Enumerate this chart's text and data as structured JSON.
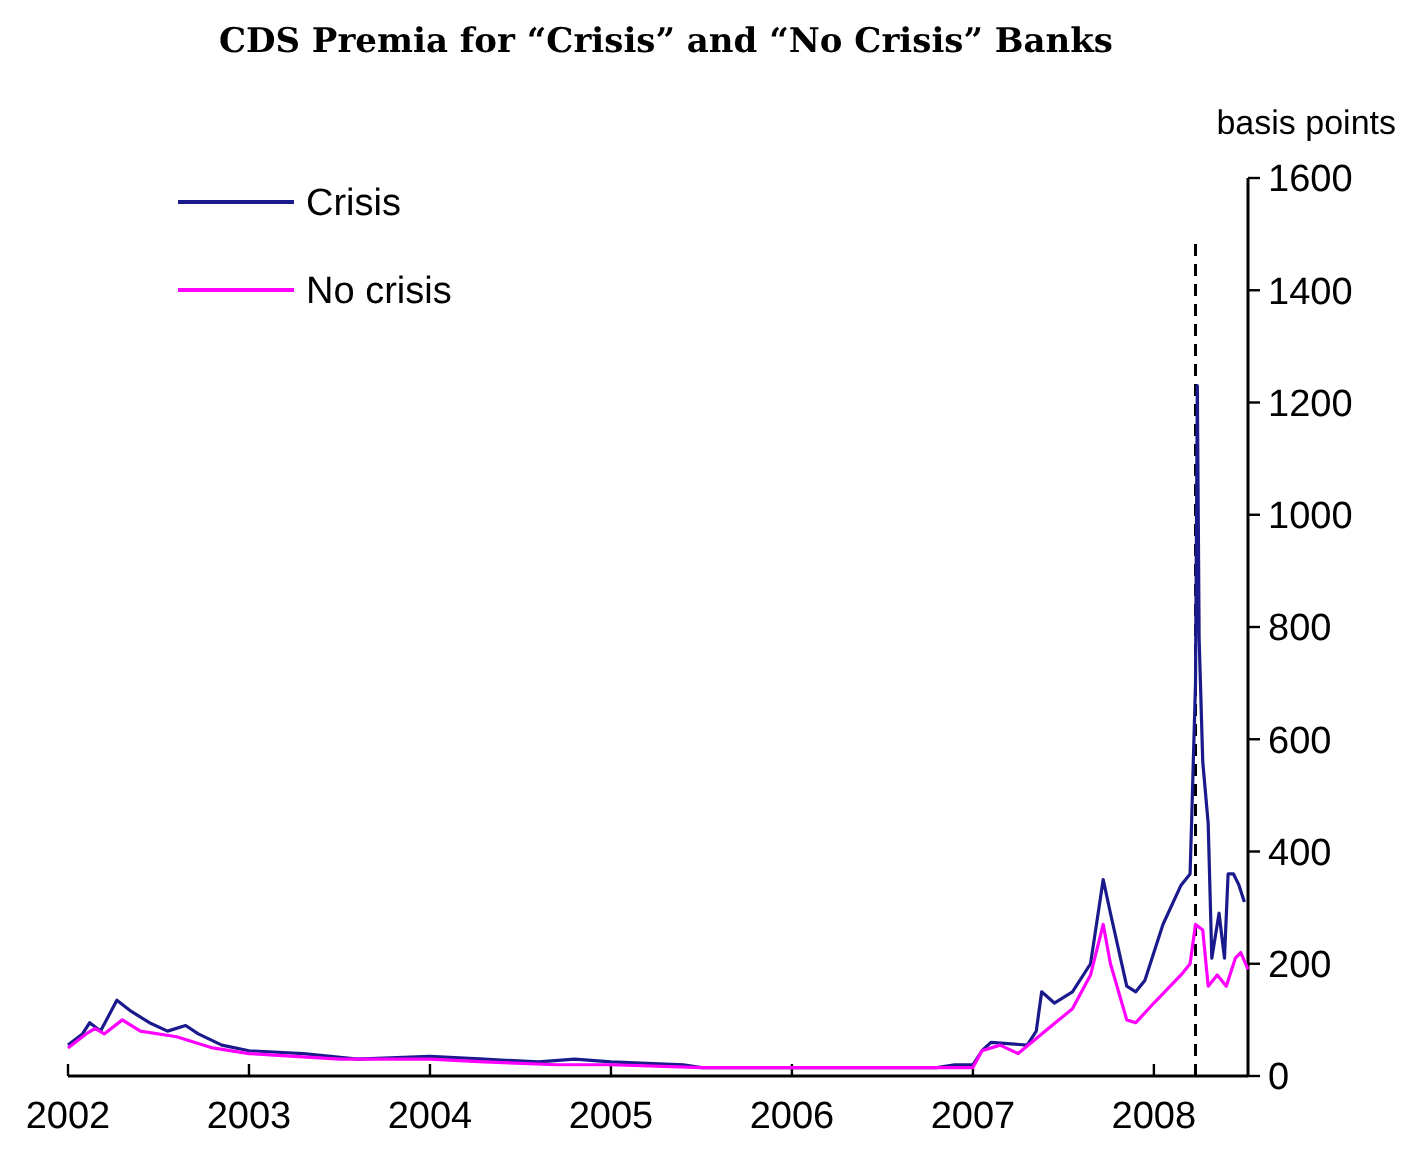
{
  "chart_data": {
    "type": "line",
    "title": "CDS Premia for “Crisis” and “No Crisis” Banks",
    "ylabel": "basis points",
    "xlim": [
      2002,
      2008.52
    ],
    "xticks": [
      2002,
      2003,
      2004,
      2005,
      2006,
      2007,
      2008
    ],
    "ylim": [
      0,
      1600
    ],
    "yticks": [
      0,
      200,
      400,
      600,
      800,
      1000,
      1200,
      1400,
      1600
    ],
    "legend": "top left",
    "grid": false,
    "ref_lines": [
      {
        "axis": "x",
        "value": 2008.23,
        "line_style": "dashed",
        "color": "#000000"
      }
    ],
    "series": [
      {
        "name": "Crisis",
        "color": "#1a1a8c",
        "x": [
          2002.0,
          2002.08,
          2002.12,
          2002.18,
          2002.27,
          2002.35,
          2002.45,
          2002.55,
          2002.65,
          2002.72,
          2002.85,
          2003.0,
          2003.3,
          2003.6,
          2004.0,
          2004.3,
          2004.6,
          2004.8,
          2005.0,
          2005.4,
          2005.5,
          2006.0,
          2006.8,
          2006.9,
          2007.0,
          2007.05,
          2007.1,
          2007.3,
          2007.35,
          2007.38,
          2007.45,
          2007.55,
          2007.65,
          2007.72,
          2007.76,
          2007.85,
          2007.9,
          2007.95,
          2008.05,
          2008.15,
          2008.2,
          2008.21,
          2008.23,
          2008.24,
          2008.25,
          2008.27,
          2008.3,
          2008.32,
          2008.36,
          2008.39,
          2008.41,
          2008.44,
          2008.47,
          2008.5
        ],
        "values": [
          55,
          75,
          95,
          80,
          135,
          115,
          95,
          80,
          90,
          75,
          55,
          45,
          40,
          30,
          35,
          30,
          25,
          30,
          25,
          20,
          15,
          15,
          15,
          20,
          20,
          45,
          60,
          55,
          80,
          150,
          130,
          150,
          200,
          350,
          290,
          160,
          150,
          170,
          270,
          340,
          360,
          470,
          700,
          1230,
          780,
          560,
          450,
          210,
          290,
          210,
          360,
          360,
          340,
          310
        ]
      },
      {
        "name": "No crisis",
        "color": "#ff00ff",
        "x": [
          2002.0,
          2002.1,
          2002.15,
          2002.2,
          2002.3,
          2002.4,
          2002.6,
          2002.8,
          2003.0,
          2003.5,
          2004.0,
          2004.3,
          2004.7,
          2005.0,
          2005.5,
          2006.9,
          2007.0,
          2007.05,
          2007.15,
          2007.25,
          2007.4,
          2007.55,
          2007.65,
          2007.72,
          2007.76,
          2007.85,
          2007.9,
          2008.0,
          2008.15,
          2008.2,
          2008.23,
          2008.27,
          2008.3,
          2008.35,
          2008.4,
          2008.45,
          2008.48,
          2008.52
        ],
        "values": [
          50,
          75,
          85,
          75,
          100,
          80,
          70,
          50,
          40,
          30,
          30,
          25,
          20,
          20,
          15,
          15,
          15,
          45,
          55,
          40,
          80,
          120,
          180,
          270,
          200,
          100,
          95,
          130,
          180,
          200,
          270,
          260,
          160,
          180,
          160,
          210,
          220,
          190
        ]
      }
    ]
  }
}
